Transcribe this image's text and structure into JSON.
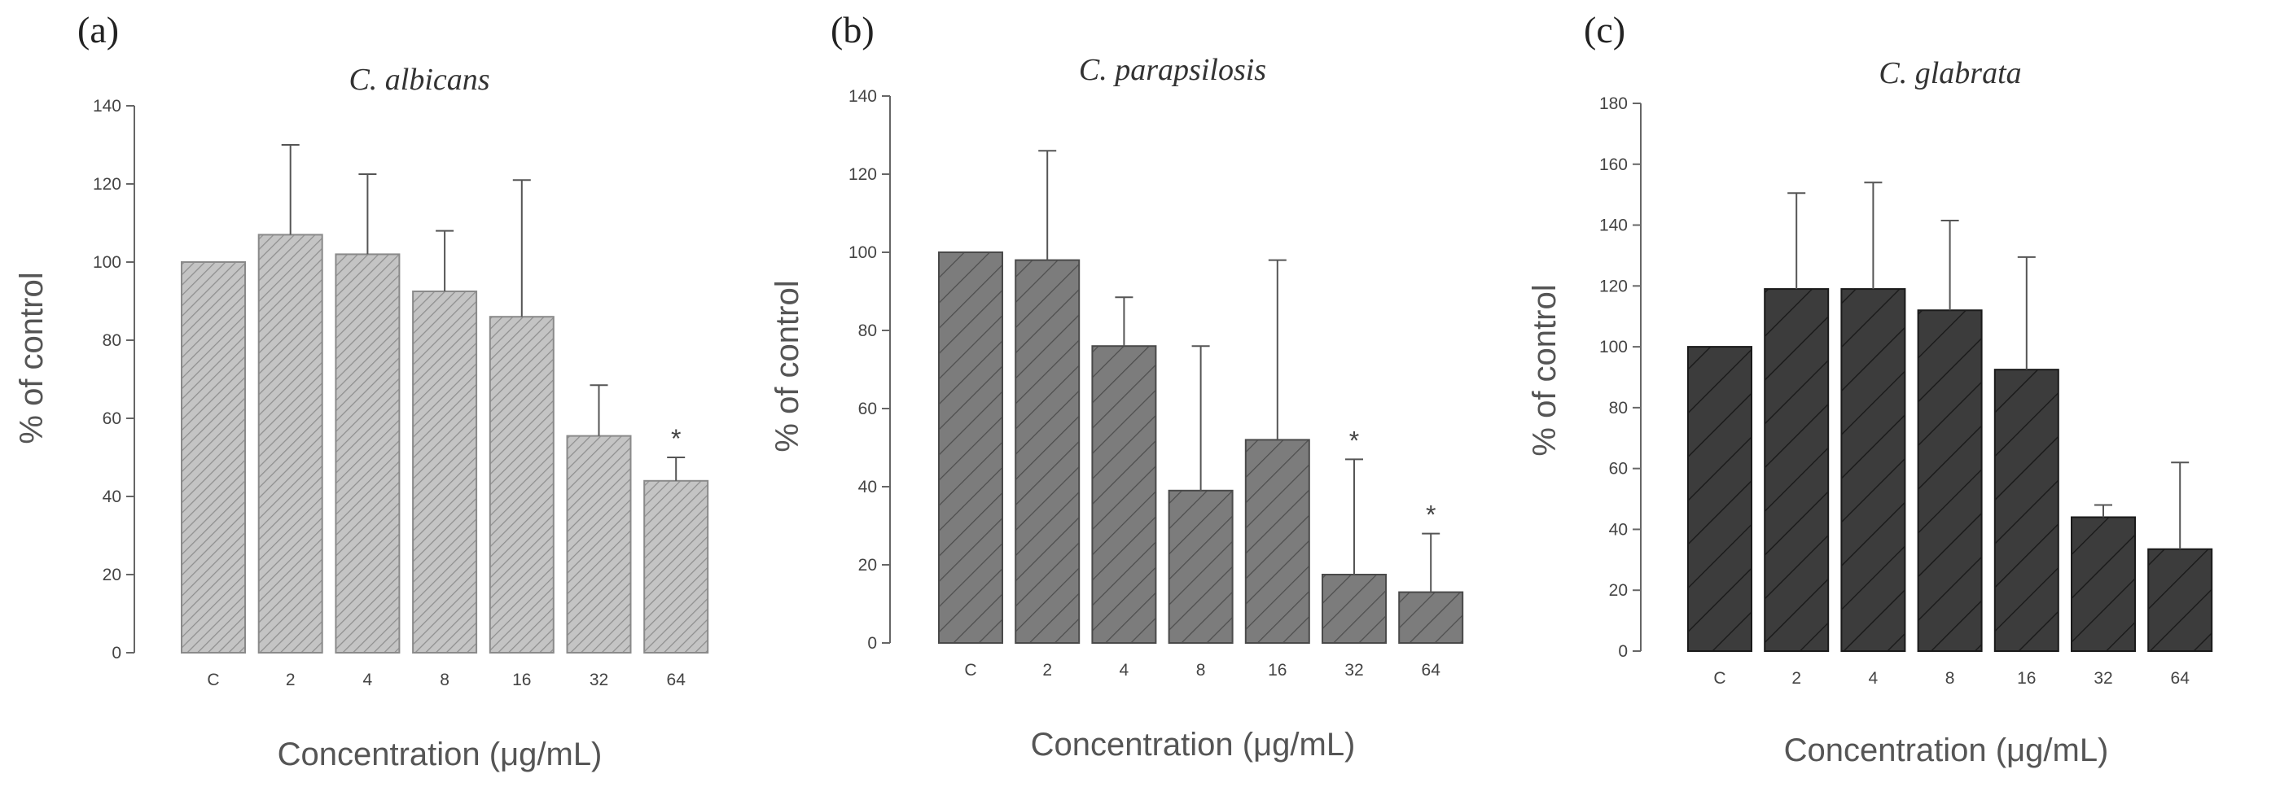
{
  "chart_data": [
    {
      "panel": "(a)",
      "type": "bar",
      "title": "C. albicans",
      "xlabel": "Concentration (μg/mL)",
      "ylabel": "% of control",
      "ylim": [
        0,
        140
      ],
      "yticks": [
        0,
        20,
        40,
        60,
        80,
        100,
        120,
        140
      ],
      "categories": [
        "C",
        "2",
        "4",
        "8",
        "16",
        "32",
        "64"
      ],
      "values": [
        100,
        107,
        102,
        92.5,
        86,
        55.5,
        44
      ],
      "error": [
        0,
        23,
        20.5,
        15.5,
        35,
        13,
        6
      ],
      "significant": [
        false,
        false,
        false,
        false,
        false,
        false,
        true
      ],
      "significance_mark": "*",
      "color": "#bcbcbc",
      "stroke": "#8a8a8a"
    },
    {
      "panel": "(b)",
      "type": "bar",
      "title": "C. parapsilosis",
      "xlabel": "Concentration (μg/mL)",
      "ylabel": "% of control",
      "ylim": [
        0,
        140
      ],
      "yticks": [
        0,
        20,
        40,
        60,
        80,
        100,
        120,
        140
      ],
      "categories": [
        "C",
        "2",
        "4",
        "8",
        "16",
        "32",
        "64"
      ],
      "values": [
        100,
        98,
        76,
        39,
        52,
        17.5,
        13
      ],
      "error": [
        0,
        28,
        12.5,
        37,
        46,
        29.5,
        15
      ],
      "significant": [
        false,
        false,
        false,
        false,
        false,
        true,
        true
      ],
      "significance_mark": "*",
      "color": "#7a7a7a",
      "stroke": "#4a4a4a"
    },
    {
      "panel": "(c)",
      "type": "bar",
      "title": "C. glabrata",
      "xlabel": "Concentration (μg/mL)",
      "ylabel": "% of control",
      "ylim": [
        0,
        180
      ],
      "yticks": [
        0,
        20,
        40,
        60,
        80,
        100,
        120,
        140,
        160,
        180
      ],
      "categories": [
        "C",
        "2",
        "4",
        "8",
        "16",
        "32",
        "64"
      ],
      "values": [
        100,
        119,
        119,
        112,
        92.5,
        44,
        33.5
      ],
      "error": [
        0,
        31.5,
        35,
        29.5,
        37,
        4,
        28.5
      ],
      "significant": [
        false,
        false,
        false,
        false,
        false,
        false,
        false
      ],
      "significance_mark": "*",
      "color": "#3a3a3a",
      "stroke": "#1a1a1a"
    }
  ]
}
